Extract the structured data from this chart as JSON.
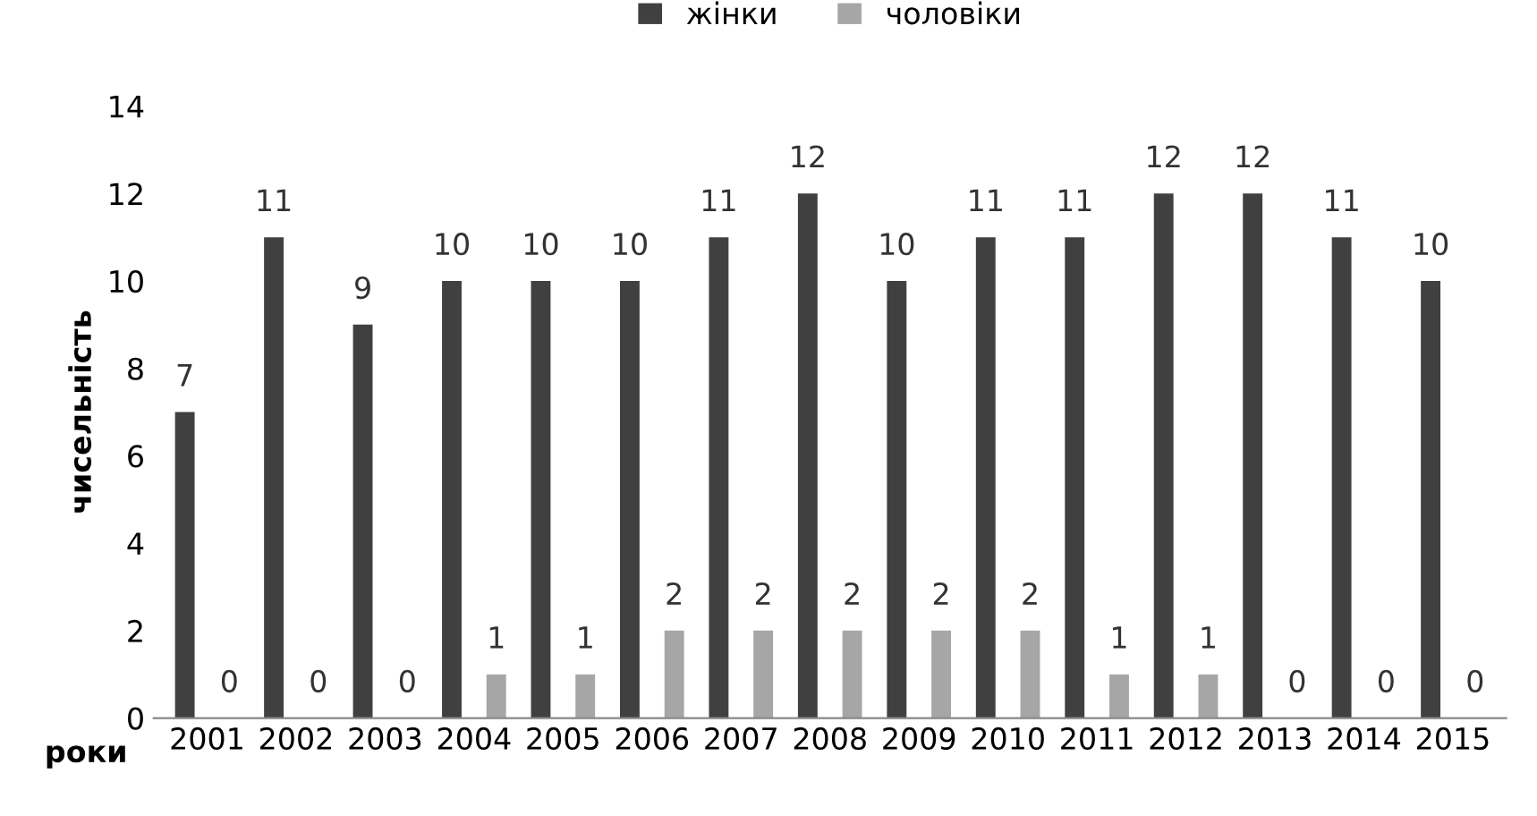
{
  "chart_data": {
    "type": "bar",
    "xlabel": "роки",
    "ylabel": "чисельність",
    "categories": [
      "2001",
      "2002",
      "2003",
      "2004",
      "2005",
      "2006",
      "2007",
      "2008",
      "2009",
      "2010",
      "2011",
      "2012",
      "2013",
      "2014",
      "2015"
    ],
    "series": [
      {
        "name": "жінки",
        "color": "#404040",
        "values": [
          7,
          11,
          9,
          10,
          10,
          10,
          11,
          12,
          10,
          11,
          11,
          12,
          12,
          11,
          10
        ]
      },
      {
        "name": "чоловіки",
        "color": "#a6a6a6",
        "values": [
          0,
          0,
          0,
          1,
          1,
          2,
          2,
          2,
          2,
          2,
          1,
          1,
          0,
          0,
          0
        ]
      }
    ],
    "ylim": [
      0,
      14
    ],
    "yticks": [
      0,
      2,
      4,
      6,
      8,
      10,
      12,
      14
    ],
    "grid": false,
    "legend": "top",
    "data_labels": true
  }
}
